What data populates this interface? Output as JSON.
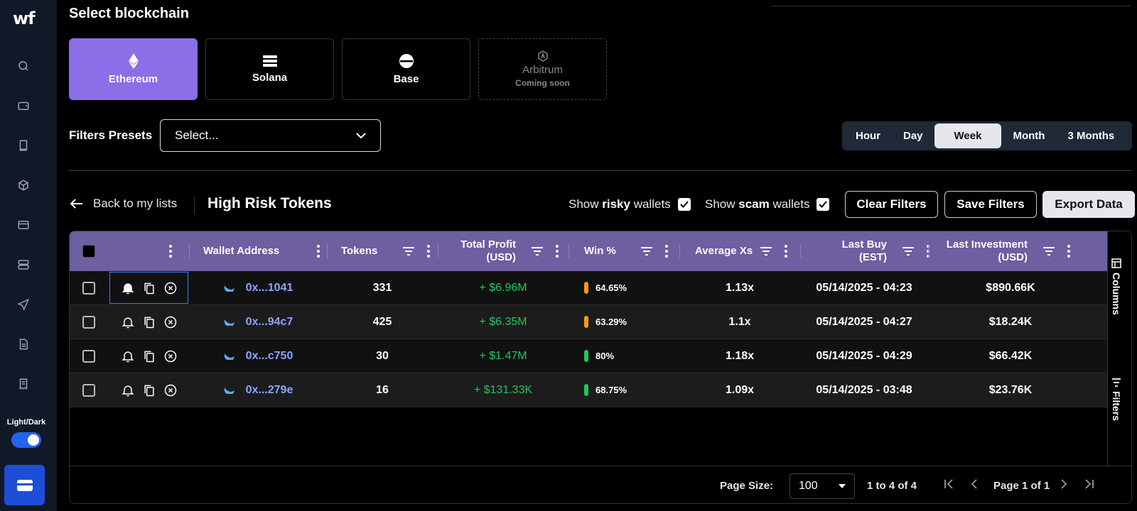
{
  "app": {
    "logo": "wf"
  },
  "sidebar": {
    "icons": [
      "search-icon",
      "wallet-icon",
      "book-icon",
      "cube-icon",
      "inbox-icon",
      "server-icon",
      "send-icon",
      "document-icon",
      "receipt-icon"
    ],
    "theme_label": "Light/Dark"
  },
  "blockchain": {
    "title": "Select blockchain",
    "chains": [
      {
        "name": "Ethereum",
        "icon": "ethereum-icon",
        "active": true
      },
      {
        "name": "Solana",
        "icon": "solana-icon"
      },
      {
        "name": "Base",
        "icon": "base-icon"
      },
      {
        "name": "Arbitrum",
        "icon": "arbitrum-icon",
        "sub": "Coming soon",
        "disabled": true
      }
    ]
  },
  "presets": {
    "label": "Filters Presets",
    "value": "Select..."
  },
  "timeframes": {
    "options": [
      "Hour",
      "Day",
      "Week",
      "Month",
      "3 Months"
    ],
    "selected": "Week"
  },
  "list": {
    "back": "Back to my lists",
    "title": "High Risk Tokens",
    "risky_pre": "Show",
    "risky_strong": "risky",
    "risky_post": "wallets",
    "scam_pre": "Show",
    "scam_strong": "scam",
    "scam_post": "wallets",
    "clear": "Clear Filters",
    "save": "Save Filters",
    "export": "Export Data"
  },
  "table": {
    "headers": {
      "wallet": "Wallet Address",
      "tokens": "Tokens",
      "profit_1": "Total Profit",
      "profit_2": "(USD)",
      "win": "Win %",
      "avg": "Average Xs",
      "lastbuy_1": "Last Buy",
      "lastbuy_2": "(EST)",
      "invest_1": "Last Investment",
      "invest_2": "(USD)"
    },
    "rows": [
      {
        "wallet": "0x...1041",
        "tokens": "331",
        "profit": "+ $6.96M",
        "win": "64.65%",
        "win_color": "#f59e0b",
        "avg": "1.13x",
        "last_buy": "05/14/2025 - 04:23",
        "invest": "$890.66K"
      },
      {
        "wallet": "0x...94c7",
        "tokens": "425",
        "profit": "+ $6.35M",
        "win": "63.29%",
        "win_color": "#f59e0b",
        "avg": "1.1x",
        "last_buy": "05/14/2025 - 04:27",
        "invest": "$18.24K"
      },
      {
        "wallet": "0x...c750",
        "tokens": "30",
        "profit": "+ $1.47M",
        "win": "80%",
        "win_color": "#22c55e",
        "avg": "1.18x",
        "last_buy": "05/14/2025 - 04:29",
        "invest": "$66.42K"
      },
      {
        "wallet": "0x...279e",
        "tokens": "16",
        "profit": "+ $131.33K",
        "win": "68.75%",
        "win_color": "#22c55e",
        "avg": "1.09x",
        "last_buy": "05/14/2025 - 03:48",
        "invest": "$23.76K"
      }
    ],
    "side_tabs": {
      "columns": "Columns",
      "filters": "Filters"
    }
  },
  "pagination": {
    "size_label": "Page Size:",
    "size_value": "100",
    "range": "1 to 4 of 4",
    "page": "Page 1 of 1"
  }
}
